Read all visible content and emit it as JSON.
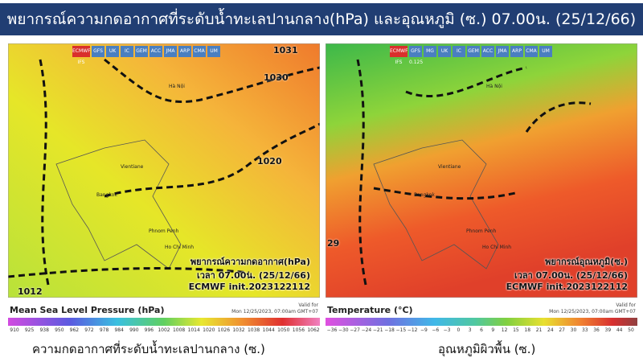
{
  "header": {
    "title": "พยากรณ์ความกดอากาศที่ระดับน้ำทะเลปานกลาง(hPa) และอุณหภูมิ (ซ.) 07.00น. (25/12/66)"
  },
  "panels": [
    {
      "toolbar": [
        "ECMWF IFS",
        "GFS",
        "UK",
        "IC",
        "GEM",
        "ACC",
        "JMA",
        "ARP",
        "CMA",
        "UM"
      ],
      "overlay": [
        "พยากรณ์ความกดอากาศ(hPa)",
        "เวลา 07.00น. (25/12/66)",
        "ECMWF init.2023122112"
      ],
      "contour_labels": [
        "1030",
        "1020",
        "1031",
        "1012"
      ],
      "places": [
        "Hà Nội",
        "Vientiane",
        "Bangkok",
        "Phnom Penh",
        "Ho Chi Minh"
      ],
      "legend_title": "Mean Sea Level Pressure (hPa)",
      "valid": [
        "Valid for",
        "Mon 12/25/2023, 07:00am GMT+07"
      ],
      "scale": [
        "910",
        "925",
        "938",
        "950",
        "962",
        "972",
        "978",
        "984",
        "990",
        "996",
        "1002",
        "1008",
        "1014",
        "1020",
        "1026",
        "1032",
        "1038",
        "1044",
        "1050",
        "1056",
        "1062"
      ],
      "caption": "ความกดอากาศที่ระดับน้ำทะเลปานกลาง (ซ.)"
    },
    {
      "toolbar": [
        "ECMWF IFS",
        "GFS 0.125",
        "MG",
        "UK",
        "IC",
        "GEM",
        "ACC",
        "JMA",
        "ARP",
        "CMA",
        "UM"
      ],
      "overlay": [
        "พยากรณ์อุณหภูมิ(ซ.)",
        "เวลา 07.00น. (25/12/66)",
        "ECMWF init.2023122112"
      ],
      "contour_labels": [
        "29"
      ],
      "places": [
        "Hà Nội",
        "Vientiane",
        "Bangkok",
        "Phnom Penh",
        "Ho Chi Minh"
      ],
      "legend_title": "Temperature (°C)",
      "valid": [
        "Valid for",
        "Mon 12/25/2023, 07:00am GMT+07"
      ],
      "scale": [
        "−36",
        "−30",
        "−27",
        "−24",
        "−21",
        "−18",
        "−15",
        "−12",
        "−9",
        "−6",
        "−3",
        "0",
        "3",
        "6",
        "9",
        "12",
        "15",
        "18",
        "21",
        "24",
        "27",
        "30",
        "33",
        "36",
        "39",
        "44",
        "50"
      ],
      "caption": "อุณหภูมิผิวพื้น (ซ.)"
    }
  ]
}
